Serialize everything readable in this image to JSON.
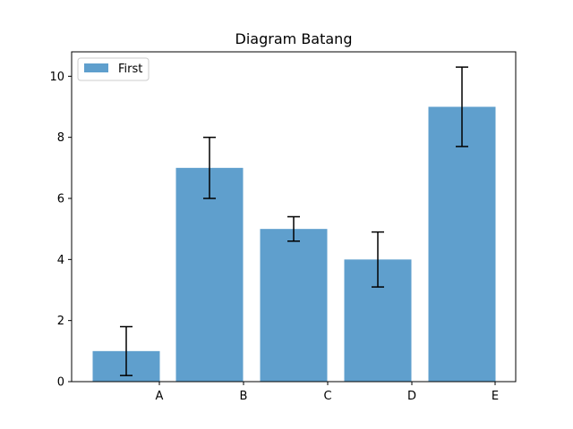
{
  "chart_data": {
    "type": "bar",
    "title": "Diagram Batang",
    "xlabel": "",
    "ylabel": "",
    "categories": [
      "A",
      "B",
      "C",
      "D",
      "E"
    ],
    "series": [
      {
        "name": "First",
        "values": [
          1,
          7,
          5,
          4,
          9
        ],
        "errors": [
          0.8,
          1.0,
          0.4,
          0.9,
          1.3
        ],
        "color": "#5f9fcd"
      }
    ],
    "ylim": [
      0,
      10.8
    ],
    "yticks": [
      0,
      2,
      4,
      6,
      8,
      10
    ],
    "grid": false,
    "legend_position": "top-left"
  }
}
